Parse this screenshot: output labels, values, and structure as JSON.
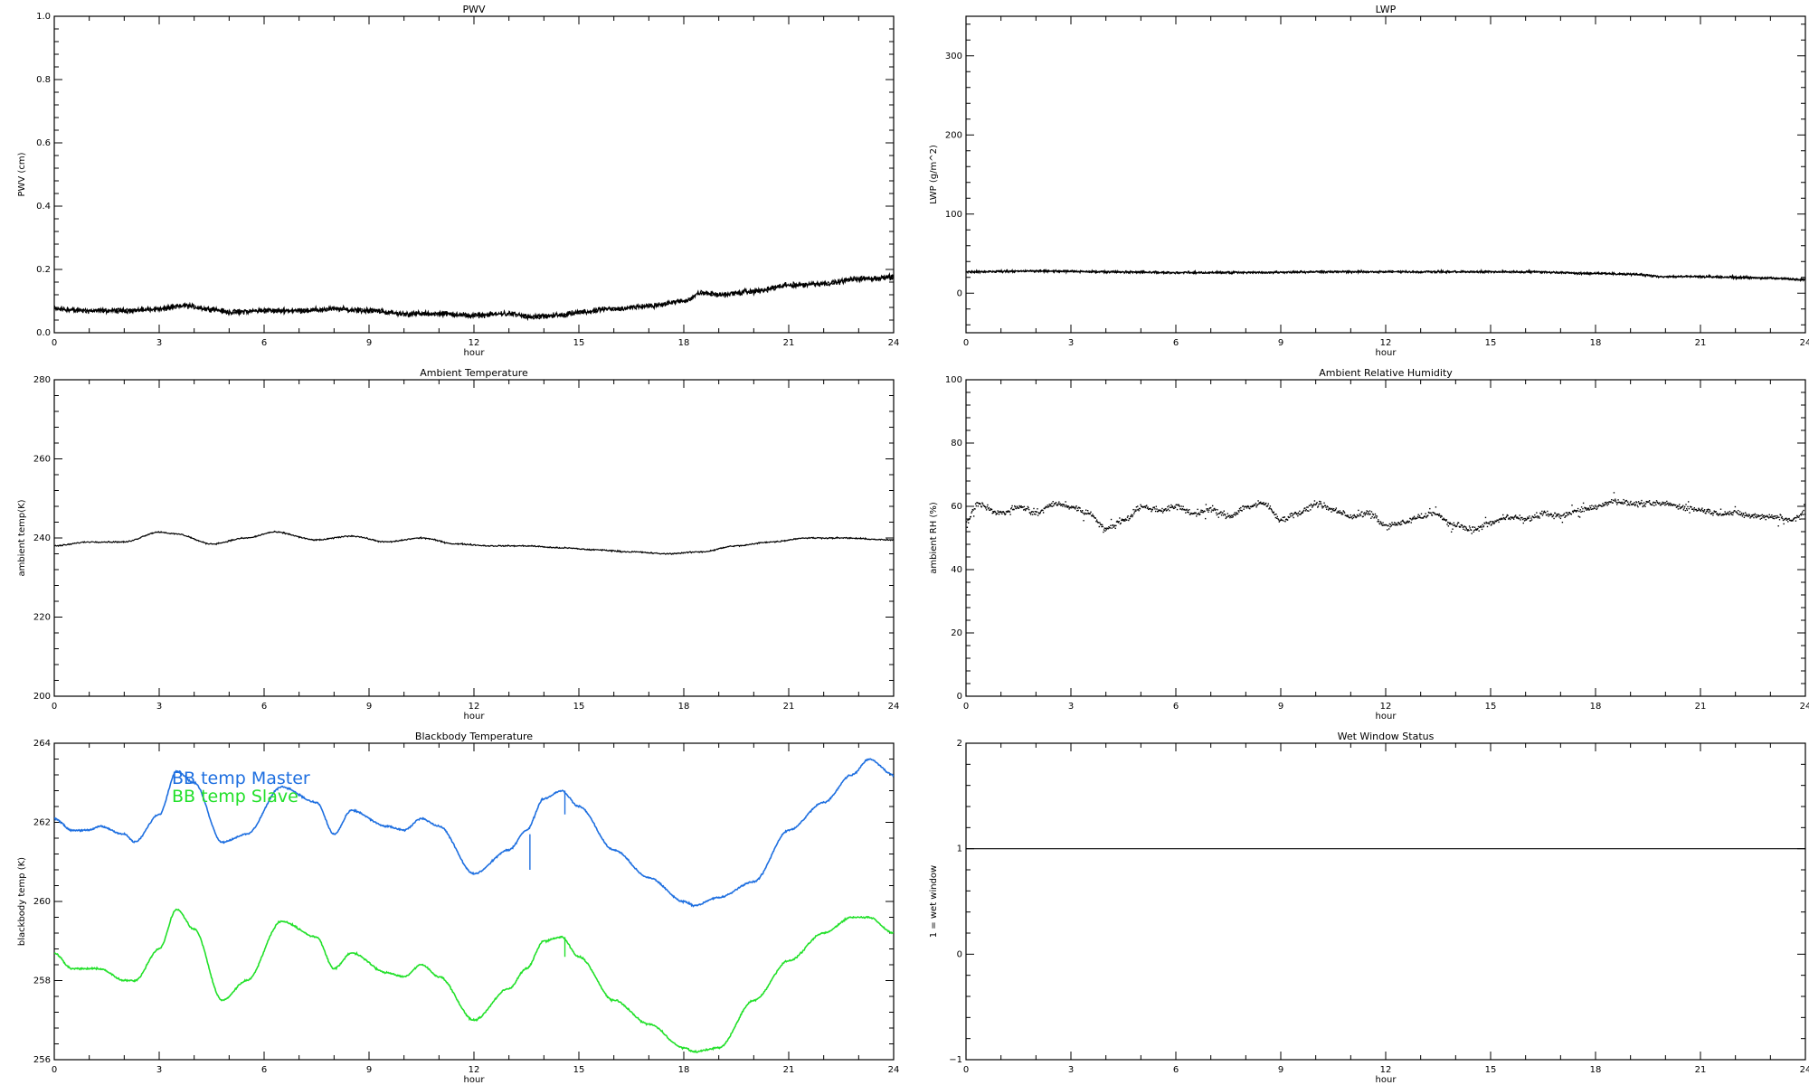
{
  "chart_data": [
    {
      "type": "line",
      "title": "PWV",
      "xlabel": "hour",
      "ylabel": "PWV (cm)",
      "xlim": [
        0,
        24
      ],
      "ylim": [
        0.0,
        1.0
      ],
      "xticks": [
        0,
        3,
        6,
        9,
        12,
        15,
        18,
        21,
        24
      ],
      "xtick_labels": [
        "0",
        "3",
        "6",
        "9",
        "12",
        "15",
        "18",
        "21",
        "24"
      ],
      "yticks": [
        0.0,
        0.2,
        0.4,
        0.6,
        0.8,
        1.0
      ],
      "ytick_labels": [
        "0.0",
        "0.2",
        "0.4",
        "0.6",
        "0.8",
        "1.0"
      ],
      "style": "noisy",
      "noise": 0.012,
      "series": [
        {
          "color": "#000000",
          "x": [
            0,
            1,
            2,
            3,
            3.7,
            4.5,
            5,
            6,
            7,
            8,
            9,
            10,
            11,
            12,
            13,
            13.7,
            14.5,
            15,
            16,
            17,
            18,
            18.5,
            19,
            20,
            21,
            22,
            23,
            24
          ],
          "y": [
            0.075,
            0.07,
            0.07,
            0.075,
            0.085,
            0.075,
            0.065,
            0.07,
            0.07,
            0.075,
            0.07,
            0.06,
            0.06,
            0.055,
            0.06,
            0.05,
            0.055,
            0.065,
            0.075,
            0.085,
            0.1,
            0.125,
            0.12,
            0.13,
            0.15,
            0.155,
            0.17,
            0.175
          ]
        }
      ]
    },
    {
      "type": "line",
      "title": "LWP",
      "xlabel": "hour",
      "ylabel": "LWP (g/m^2)",
      "xlim": [
        0,
        24
      ],
      "ylim": [
        -50,
        350
      ],
      "xticks": [
        0,
        3,
        6,
        9,
        12,
        15,
        18,
        21,
        24
      ],
      "xtick_labels": [
        "0",
        "3",
        "6",
        "9",
        "12",
        "15",
        "18",
        "21",
        "24"
      ],
      "yticks": [
        0,
        100,
        200,
        300
      ],
      "ytick_labels": [
        "0",
        "100",
        "200",
        "300"
      ],
      "style": "noisy",
      "noise": 2.2,
      "series": [
        {
          "color": "#000000",
          "x": [
            0,
            2,
            4,
            6,
            8,
            10,
            12,
            14,
            16,
            18,
            19,
            20,
            21,
            22,
            23,
            24
          ],
          "y": [
            27,
            28,
            27,
            26,
            26,
            27,
            27,
            27,
            27,
            25,
            24,
            21,
            21,
            20,
            19,
            17
          ]
        }
      ]
    },
    {
      "type": "line",
      "title": "Ambient Temperature",
      "xlabel": "hour",
      "ylabel": "ambient temp(K)",
      "xlim": [
        0,
        24
      ],
      "ylim": [
        200,
        280
      ],
      "xticks": [
        0,
        3,
        6,
        9,
        12,
        15,
        18,
        21,
        24
      ],
      "xtick_labels": [
        "0",
        "3",
        "6",
        "9",
        "12",
        "15",
        "18",
        "21",
        "24"
      ],
      "yticks": [
        200,
        220,
        240,
        260,
        280
      ],
      "ytick_labels": [
        "200",
        "220",
        "240",
        "260",
        "280"
      ],
      "style": "line",
      "noise": 0.25,
      "series": [
        {
          "color": "#000000",
          "x": [
            0,
            1,
            2,
            3,
            3.5,
            4.5,
            5.5,
            6.3,
            7.5,
            8.5,
            9.5,
            10.5,
            11.5,
            12.5,
            13.5,
            14.5,
            15.5,
            16.5,
            17.5,
            18.5,
            19.5,
            20.5,
            21.5,
            22.5,
            24
          ],
          "y": [
            238,
            239,
            239,
            241.5,
            241,
            238.5,
            240,
            241.5,
            239.5,
            240.5,
            239,
            240,
            238.5,
            238,
            238,
            237.5,
            237,
            236.5,
            236,
            236.5,
            238,
            239,
            240,
            240,
            239.5
          ]
        }
      ]
    },
    {
      "type": "scatter",
      "title": "Ambient Relative Humidity",
      "xlabel": "hour",
      "ylabel": "ambient RH (%)",
      "xlim": [
        0,
        24
      ],
      "ylim": [
        0,
        100
      ],
      "xticks": [
        0,
        3,
        6,
        9,
        12,
        15,
        18,
        21,
        24
      ],
      "xtick_labels": [
        "0",
        "3",
        "6",
        "9",
        "12",
        "15",
        "18",
        "21",
        "24"
      ],
      "yticks": [
        0,
        20,
        40,
        60,
        80,
        100
      ],
      "ytick_labels": [
        "0",
        "20",
        "40",
        "60",
        "80",
        "100"
      ],
      "style": "dots",
      "noise": 1.3,
      "series": [
        {
          "color": "#000000",
          "x": [
            0,
            0.3,
            1,
            1.5,
            2,
            2.5,
            3,
            3.5,
            4,
            4.5,
            5,
            5.5,
            6,
            6.5,
            7,
            7.5,
            8,
            8.5,
            9,
            9.5,
            10,
            10.5,
            11,
            11.5,
            12,
            12.5,
            13,
            13.3,
            14,
            14.5,
            15,
            15.5,
            16,
            16.5,
            17,
            17.5,
            18,
            18.5,
            19,
            19.5,
            20,
            20.5,
            21,
            21.5,
            22,
            22.5,
            23,
            23.5,
            24
          ],
          "y": [
            55,
            61,
            58,
            60,
            58,
            61,
            60,
            58,
            53,
            56,
            60,
            59,
            60,
            58,
            59,
            57,
            60,
            61,
            56,
            58,
            61,
            59,
            57,
            58,
            54,
            55,
            57,
            58,
            54,
            53,
            55,
            57,
            56,
            58,
            57,
            59,
            60,
            62,
            61,
            61,
            61,
            60,
            59,
            58,
            58,
            57,
            57,
            56,
            58
          ]
        }
      ]
    },
    {
      "type": "line",
      "title": "Blackbody Temperature",
      "xlabel": "hour",
      "ylabel": "blackbody temp (K)",
      "xlim": [
        0,
        24
      ],
      "ylim": [
        256,
        264
      ],
      "xticks": [
        0,
        3,
        6,
        9,
        12,
        15,
        18,
        21,
        24
      ],
      "xtick_labels": [
        "0",
        "3",
        "6",
        "9",
        "12",
        "15",
        "18",
        "21",
        "24"
      ],
      "yticks": [
        256,
        258,
        260,
        262,
        264
      ],
      "ytick_labels": [
        "256",
        "258",
        "260",
        "262",
        "264"
      ],
      "style": "smooth",
      "noise": 0.03,
      "legend": [
        "BB temp Master",
        "BB temp Slave"
      ],
      "legend_position": "top-left",
      "series": [
        {
          "name": "BB temp Master",
          "color": "#1e6fe0",
          "x": [
            0,
            0.5,
            1,
            1.3,
            2,
            2.3,
            3,
            3.5,
            4,
            4.8,
            5.5,
            6.5,
            7.5,
            8,
            8.5,
            9.5,
            10,
            10.5,
            11,
            12,
            13,
            13.5,
            14,
            14.5,
            15,
            16,
            17,
            18,
            18.3,
            19,
            20,
            21,
            22,
            22.8,
            23.3,
            24
          ],
          "y": [
            262.1,
            261.8,
            261.8,
            261.9,
            261.7,
            261.5,
            262.2,
            263.3,
            263,
            261.5,
            261.7,
            262.9,
            262.5,
            261.7,
            262.3,
            261.9,
            261.8,
            262.1,
            261.9,
            260.7,
            261.3,
            261.8,
            262.6,
            262.8,
            262.4,
            261.3,
            260.6,
            260,
            259.9,
            260.1,
            260.5,
            261.8,
            262.5,
            263.2,
            263.6,
            263.2
          ]
        },
        {
          "name": "BB temp Slave",
          "color": "#22e02a",
          "x": [
            0,
            0.5,
            1,
            1.3,
            2,
            2.3,
            3,
            3.5,
            4,
            4.8,
            5.5,
            6.5,
            7.5,
            8,
            8.5,
            9.5,
            10,
            10.5,
            11,
            12,
            13,
            13.5,
            14,
            14.5,
            15,
            16,
            17,
            18,
            18.3,
            19,
            20,
            21,
            22,
            22.8,
            23.3,
            24
          ],
          "y": [
            258.7,
            258.3,
            258.3,
            258.3,
            258,
            258,
            258.8,
            259.8,
            259.3,
            257.5,
            258,
            259.5,
            259.1,
            258.3,
            258.7,
            258.2,
            258.1,
            258.4,
            258.1,
            257,
            257.8,
            258.3,
            259,
            259.1,
            258.6,
            257.5,
            256.9,
            256.3,
            256.2,
            256.3,
            257.5,
            258.5,
            259.2,
            259.6,
            259.6,
            259.2
          ]
        }
      ],
      "spikes": [
        {
          "series": 0,
          "x": 13.6,
          "y1": 261.7,
          "y2": 260.8
        },
        {
          "series": 0,
          "x": 14.6,
          "y1": 262.8,
          "y2": 262.2
        },
        {
          "series": 1,
          "x": 14.6,
          "y1": 259.1,
          "y2": 258.6
        }
      ]
    },
    {
      "type": "line",
      "title": "Wet Window Status",
      "xlabel": "hour",
      "ylabel": "1 = wet window",
      "xlim": [
        0,
        24
      ],
      "ylim": [
        -1,
        2
      ],
      "xticks": [
        0,
        3,
        6,
        9,
        12,
        15,
        18,
        21,
        24
      ],
      "xtick_labels": [
        "0",
        "3",
        "6",
        "9",
        "12",
        "15",
        "18",
        "21",
        "24"
      ],
      "yticks": [
        -1,
        0,
        1,
        2
      ],
      "ytick_labels": [
        "−1",
        "0",
        "1",
        "2"
      ],
      "style": "line",
      "noise": 0,
      "series": [
        {
          "color": "#000000",
          "x": [
            0,
            24
          ],
          "y": [
            1,
            1
          ]
        }
      ]
    }
  ]
}
